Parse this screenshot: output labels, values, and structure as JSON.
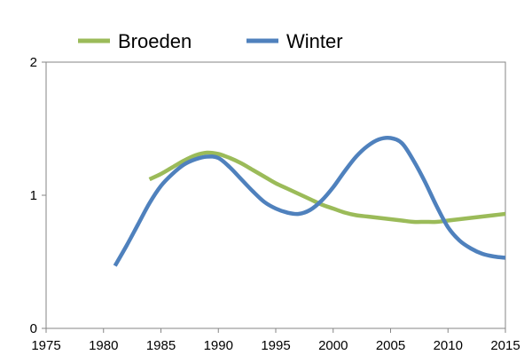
{
  "chart_data": {
    "type": "line",
    "title": "",
    "xlabel": "",
    "ylabel": "",
    "xlim": [
      1975,
      2015
    ],
    "ylim": [
      0,
      2
    ],
    "x_ticks": [
      1975,
      1980,
      1985,
      1990,
      1995,
      2000,
      2005,
      2010,
      2015
    ],
    "x_tick_labels": [
      "1975",
      "1980",
      "1985",
      "1990",
      "1995",
      "2000",
      "2005",
      "2010",
      "2015"
    ],
    "y_ticks": [
      0,
      1,
      2
    ],
    "y_tick_labels": [
      "0",
      "1",
      "2"
    ],
    "grid": false,
    "legend": "top",
    "series": [
      {
        "name": "Broeden",
        "color": "#9bbb59",
        "x": [
          1984,
          1985,
          1986,
          1987,
          1988,
          1989,
          1990,
          1991,
          1992,
          1993,
          1994,
          1995,
          1996,
          1997,
          1998,
          1999,
          2000,
          2001,
          2002,
          2003,
          2004,
          2005,
          2006,
          2007,
          2008,
          2009,
          2010,
          2011,
          2012,
          2013,
          2014,
          2015
        ],
        "values": [
          1.12,
          1.16,
          1.21,
          1.26,
          1.3,
          1.32,
          1.31,
          1.28,
          1.24,
          1.19,
          1.14,
          1.09,
          1.05,
          1.01,
          0.97,
          0.93,
          0.9,
          0.87,
          0.85,
          0.84,
          0.83,
          0.82,
          0.81,
          0.8,
          0.8,
          0.8,
          0.81,
          0.82,
          0.83,
          0.84,
          0.85,
          0.86
        ]
      },
      {
        "name": "Winter",
        "color": "#4f81bd",
        "x": [
          1981,
          1982,
          1983,
          1984,
          1985,
          1986,
          1987,
          1988,
          1989,
          1990,
          1991,
          1992,
          1993,
          1994,
          1995,
          1996,
          1997,
          1998,
          1999,
          2000,
          2001,
          2002,
          2003,
          2004,
          2005,
          2006,
          2007,
          2008,
          2009,
          2010,
          2011,
          2012,
          2013,
          2014,
          2015
        ],
        "values": [
          0.47,
          0.62,
          0.78,
          0.94,
          1.07,
          1.16,
          1.23,
          1.27,
          1.29,
          1.28,
          1.21,
          1.12,
          1.03,
          0.95,
          0.9,
          0.87,
          0.86,
          0.89,
          0.96,
          1.06,
          1.18,
          1.29,
          1.37,
          1.42,
          1.43,
          1.39,
          1.26,
          1.1,
          0.92,
          0.76,
          0.66,
          0.6,
          0.56,
          0.54,
          0.53
        ]
      }
    ]
  }
}
